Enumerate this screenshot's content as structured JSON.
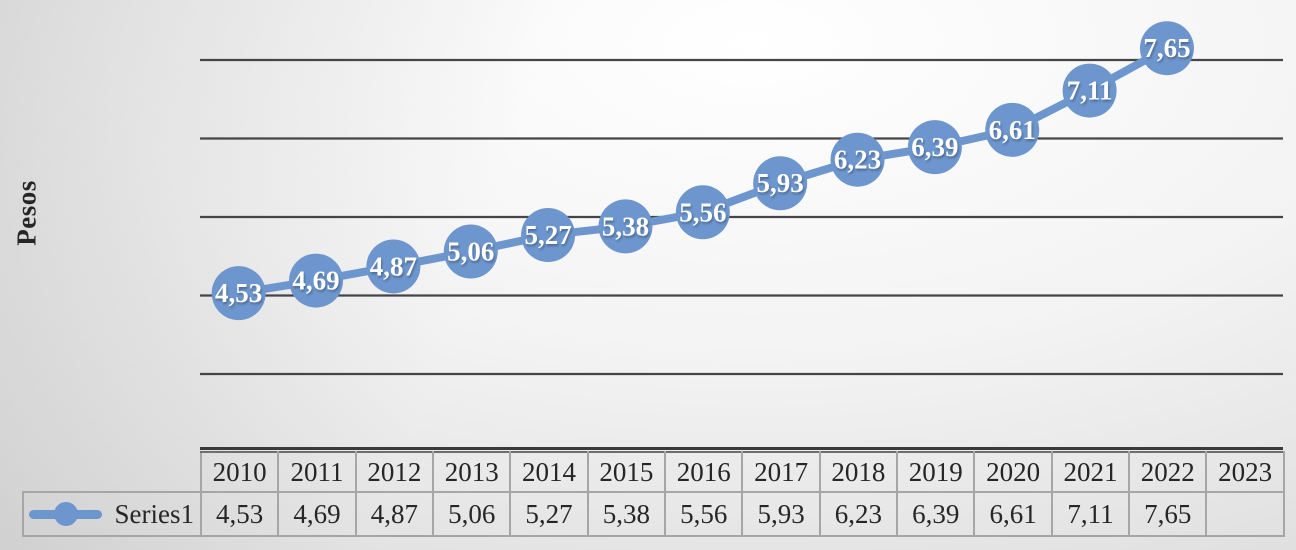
{
  "chart_data": {
    "type": "line",
    "title": "",
    "y_axis_title": "Pesos",
    "categories": [
      "2010",
      "2011",
      "2012",
      "2013",
      "2014",
      "2015",
      "2016",
      "2017",
      "2018",
      "2019",
      "2020",
      "2021",
      "2022",
      "2023"
    ],
    "series": [
      {
        "name": "Series1",
        "values": [
          4.53,
          4.69,
          4.87,
          5.06,
          5.27,
          5.38,
          5.56,
          5.93,
          6.23,
          6.39,
          6.61,
          7.11,
          7.65
        ],
        "labels": [
          "4,53",
          "4,69",
          "4,87",
          "5,06",
          "5,27",
          "5,38",
          "5,56",
          "5,93",
          "6,23",
          "6,39",
          "6,61",
          "7,11",
          "7,65"
        ]
      }
    ],
    "ylim": [
      3.5,
      7.5
    ],
    "gridline_count": 5,
    "grid": true,
    "legend_position": "table-row-left",
    "data_labels": "inside-marker",
    "number_format": "decimal-comma",
    "empty_cells": [
      "2023"
    ],
    "colors": {
      "series": "#6d96ce",
      "marker_label_text": "#ffffff",
      "gridline": "#454545",
      "axis_line": "#3a3a3a",
      "table_border": "#a6a6a6",
      "text": "#262626"
    }
  }
}
